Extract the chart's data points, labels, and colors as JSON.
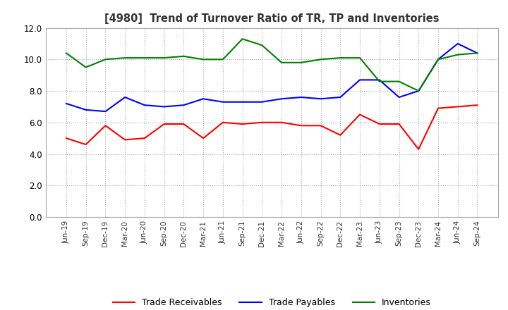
{
  "title": "[4980]  Trend of Turnover Ratio of TR, TP and Inventories",
  "x_labels": [
    "Jun-19",
    "Sep-19",
    "Dec-19",
    "Mar-20",
    "Jun-20",
    "Sep-20",
    "Dec-20",
    "Mar-21",
    "Jun-21",
    "Sep-21",
    "Dec-21",
    "Mar-22",
    "Jun-22",
    "Sep-22",
    "Dec-22",
    "Mar-23",
    "Jun-23",
    "Sep-23",
    "Dec-23",
    "Mar-24",
    "Jun-24",
    "Sep-24"
  ],
  "trade_receivables": [
    5.0,
    4.6,
    5.8,
    4.9,
    5.0,
    5.9,
    5.9,
    5.0,
    6.0,
    5.9,
    6.0,
    6.0,
    5.8,
    5.8,
    5.2,
    6.5,
    5.9,
    5.9,
    4.3,
    6.9,
    7.0,
    7.1
  ],
  "trade_payables": [
    7.2,
    6.8,
    6.7,
    7.6,
    7.1,
    7.0,
    7.1,
    7.5,
    7.3,
    7.3,
    7.3,
    7.5,
    7.6,
    7.5,
    7.6,
    8.7,
    8.7,
    7.6,
    8.0,
    10.0,
    11.0,
    10.4
  ],
  "inventories": [
    10.4,
    9.5,
    10.0,
    10.1,
    10.1,
    10.1,
    10.2,
    10.0,
    10.0,
    11.3,
    10.9,
    9.8,
    9.8,
    10.0,
    10.1,
    10.1,
    8.6,
    8.6,
    8.0,
    10.0,
    10.3,
    10.4
  ],
  "tr_color": "#ff0000",
  "tp_color": "#0000ff",
  "inv_color": "#008000",
  "ylim": [
    0.0,
    12.0
  ],
  "yticks": [
    0.0,
    2.0,
    4.0,
    6.0,
    8.0,
    10.0,
    12.0
  ],
  "legend_labels": [
    "Trade Receivables",
    "Trade Payables",
    "Inventories"
  ],
  "background_color": "#ffffff",
  "grid_color": "#aaaaaa"
}
